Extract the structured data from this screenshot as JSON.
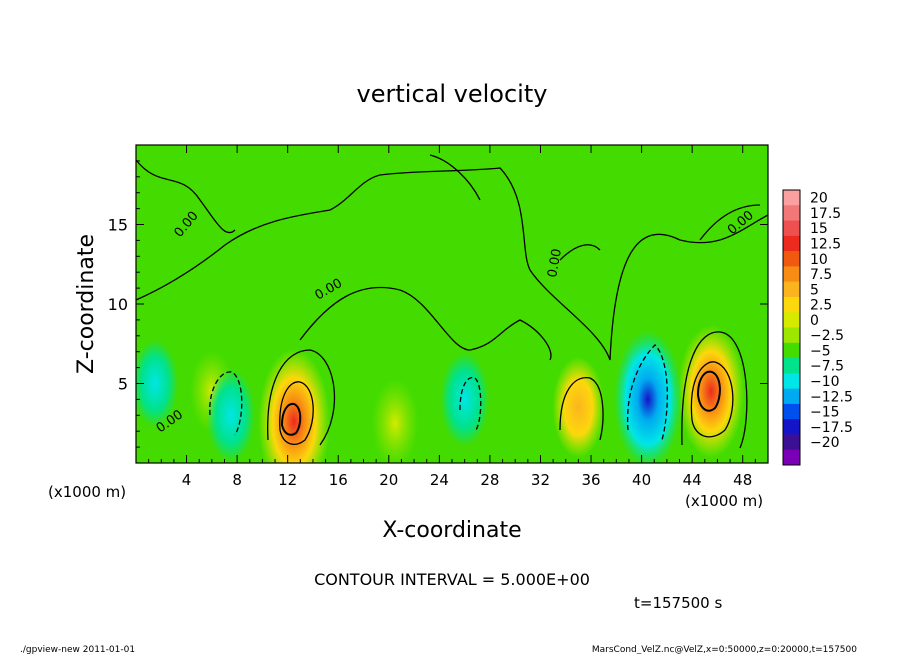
{
  "chart_data": {
    "type": "heatmap",
    "title": "vertical velocity",
    "xlabel": "X-coordinate",
    "ylabel": "Z-coordinate",
    "x_unit_left": "(x1000 m)",
    "x_unit_right": "(x1000 m)",
    "xlim": [
      0,
      50
    ],
    "ylim": [
      0,
      20
    ],
    "x_ticks": [
      "4",
      "8",
      "12",
      "16",
      "20",
      "24",
      "28",
      "32",
      "36",
      "40",
      "44",
      "48"
    ],
    "y_ticks": [
      "5",
      "10",
      "15"
    ],
    "colorbar": {
      "labels": [
        "20",
        "17.5",
        "15",
        "12.5",
        "10",
        "7.5",
        "5",
        "2.5",
        "0",
        "−2.5",
        "−5",
        "−7.5",
        "−10",
        "−12.5",
        "−15",
        "−17.5",
        "−20"
      ],
      "colors": [
        "#f9a0a0",
        "#f27878",
        "#ee5050",
        "#ec2a1e",
        "#f05a10",
        "#f88c14",
        "#fcb41e",
        "#fcd80c",
        "#d6ea00",
        "#9ce600",
        "#44dc00",
        "#00e28c",
        "#00e6e6",
        "#00aaf0",
        "#0050f0",
        "#1414c8",
        "#3c1094",
        "#7a00b6"
      ]
    },
    "contour_label": "0.00",
    "contour_interval_text": "CONTOUR INTERVAL = 5.000E+00",
    "time_text": "t=157500 s",
    "features": [
      {
        "x": 12.5,
        "z": 2.6,
        "w": 14
      },
      {
        "x": 45.5,
        "z": 4.5,
        "w": 12
      },
      {
        "x": 35.0,
        "z": 3.5,
        "w": 7
      },
      {
        "x": 20.5,
        "z": 2.5,
        "w": 5
      },
      {
        "x": 6.0,
        "z": 4.5,
        "w": 4
      },
      {
        "x": 40.5,
        "z": 4.0,
        "w": -13
      },
      {
        "x": 7.5,
        "z": 3.0,
        "w": -6
      },
      {
        "x": 26.0,
        "z": 4.0,
        "w": -6
      },
      {
        "x": 1.5,
        "z": 5.0,
        "w": -5
      }
    ]
  },
  "footer": {
    "left": "./gpview-new  2011-01-01",
    "right": "MarsCond_VelZ.nc@VelZ,x=0:50000,z=0:20000,t=157500"
  }
}
